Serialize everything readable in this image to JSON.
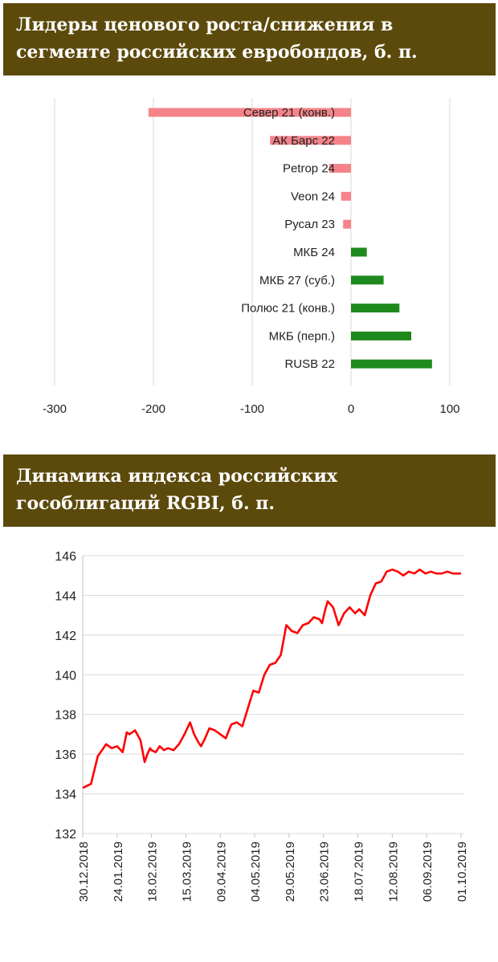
{
  "panel1": {
    "title_line1": "Лидеры ценового роста/снижения в",
    "title_line2": "сегменте российских евробондов, б. п."
  },
  "panel2": {
    "title_line1": "Динамика индекса российских",
    "title_line2": "гособлигаций RGBI, б. п."
  },
  "colors": {
    "header_bg": "#5c4a0c",
    "negative_bar": "#f4848a",
    "positive_bar": "#1e8a1e",
    "line": "#ff0000",
    "grid": "#d9d9d9"
  },
  "chart_data": [
    {
      "type": "bar",
      "orientation": "horizontal",
      "categories": [
        "Север 21 (конв.)",
        "АК Барс 22",
        "Petrop 24",
        "Veon 24",
        "Русал 23",
        "МКБ 24",
        "МКБ 27 (суб.)",
        "Полюс 21 (конв.)",
        "МКБ (перп.)",
        "RUSB 22"
      ],
      "values": [
        -205,
        -82,
        -22,
        -10,
        -8,
        16,
        33,
        49,
        61,
        82
      ],
      "xlim": [
        -300,
        100
      ],
      "xticks": [
        "-300",
        "-200",
        "-100",
        "0",
        "100"
      ],
      "grid": "vertical"
    },
    {
      "type": "line",
      "ylim": [
        132,
        146
      ],
      "yticks": [
        "146",
        "144",
        "142",
        "140",
        "138",
        "136",
        "134",
        "132"
      ],
      "xtick_labels": [
        "30.12.2018",
        "24.01.2019",
        "18.02.2019",
        "15.03.2019",
        "09.04.2019",
        "04.05.2019",
        "29.05.2019",
        "23.06.2019",
        "18.07.2019",
        "12.08.2019",
        "06.09.2019",
        "01.10.2019"
      ],
      "x": [
        "30.12.2018",
        "05.01.2019",
        "10.01.2019",
        "13.01.2019",
        "16.01.2019",
        "20.01.2019",
        "24.01.2019",
        "28.01.2019",
        "31.01.2019",
        "02.02.2019",
        "06.02.2019",
        "10.02.2019",
        "13.02.2019",
        "15.02.2019",
        "17.02.2019",
        "18.02.2019",
        "21.02.2019",
        "24.02.2019",
        "27.02.2019",
        "02.03.2019",
        "06.03.2019",
        "10.03.2019",
        "14.03.2019",
        "18.03.2019",
        "21.03.2019",
        "24.03.2019",
        "26.03.2019",
        "29.03.2019",
        "01.04.2019",
        "05.04.2019",
        "09.04.2019",
        "13.04.2019",
        "17.04.2019",
        "21.04.2019",
        "25.04.2019",
        "29.04.2019",
        "03.05.2019",
        "07.05.2019",
        "11.05.2019",
        "15.05.2019",
        "19.05.2019",
        "23.05.2019",
        "27.05.2019",
        "31.05.2019",
        "04.06.2019",
        "08.06.2019",
        "12.06.2019",
        "16.06.2019",
        "20.06.2019",
        "22.06.2019",
        "24.06.2019",
        "26.06.2019",
        "30.06.2019",
        "04.07.2019",
        "08.07.2019",
        "12.07.2019",
        "16.07.2019",
        "19.07.2019",
        "23.07.2019",
        "27.07.2019",
        "31.07.2019",
        "04.08.2019",
        "08.08.2019",
        "12.08.2019",
        "16.08.2019",
        "20.08.2019",
        "24.08.2019",
        "28.08.2019",
        "01.09.2019",
        "05.09.2019",
        "09.09.2019",
        "13.09.2019",
        "17.09.2019",
        "21.09.2019",
        "25.09.2019",
        "01.10.2019"
      ],
      "y": [
        134.3,
        134.5,
        135.9,
        136.2,
        136.5,
        136.3,
        136.4,
        136.1,
        137.1,
        137.0,
        137.2,
        136.7,
        135.6,
        136.0,
        136.3,
        136.2,
        136.1,
        136.4,
        136.2,
        136.3,
        136.2,
        136.5,
        137.0,
        137.6,
        137.0,
        136.6,
        136.4,
        136.8,
        137.3,
        137.2,
        137.0,
        136.8,
        137.5,
        137.6,
        137.4,
        138.3,
        139.2,
        139.1,
        140.0,
        140.5,
        140.6,
        141.0,
        142.5,
        142.2,
        142.1,
        142.5,
        142.6,
        142.9,
        142.8,
        142.6,
        143.2,
        143.7,
        143.4,
        142.5,
        143.1,
        143.4,
        143.1,
        143.3,
        143.0,
        144.0,
        144.6,
        144.7,
        145.2,
        145.3,
        145.2,
        145.0,
        145.2,
        145.1,
        145.3,
        145.1,
        145.2,
        145.1,
        145.1,
        145.2,
        145.1,
        145.1
      ],
      "grid": "horizontal"
    }
  ]
}
